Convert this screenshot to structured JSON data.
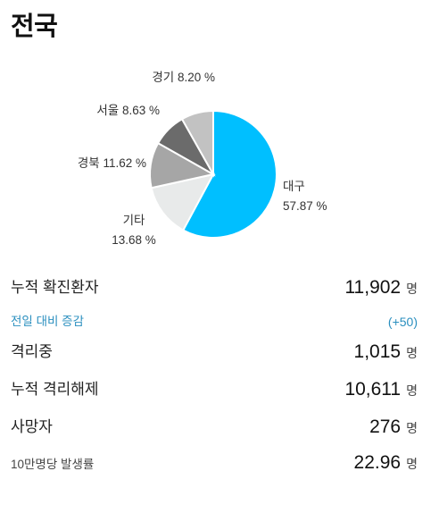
{
  "title": "전국",
  "chart_data": {
    "type": "pie",
    "slices": [
      {
        "label": "대구",
        "value_text": "57.87 %",
        "value": 57.87,
        "color": "#00bfff"
      },
      {
        "label": "기타",
        "value_text": "13.68 %",
        "value": 13.68,
        "color": "#e8eaea"
      },
      {
        "label": "경북",
        "value_text": "11.62 %",
        "value": 11.62,
        "color": "#a6a6a6"
      },
      {
        "label": "서울",
        "value_text": "8.63 %",
        "value": 8.63,
        "color": "#6b6b6b"
      },
      {
        "label": "경기",
        "value_text": "8.20 %",
        "value": 8.2,
        "color": "#c2c2c2"
      }
    ]
  },
  "stats": {
    "total_label": "누적 확진환자",
    "total_value": "11,902",
    "unit": "명",
    "change_label": "전일 대비 증감",
    "change_value": "(+50)",
    "isolated_label": "격리중",
    "isolated_value": "1,015",
    "released_label": "누적 격리해제",
    "released_value": "10,611",
    "deaths_label": "사망자",
    "deaths_value": "276",
    "rate_label": "10만명당 발생률",
    "rate_value": "22.96"
  }
}
